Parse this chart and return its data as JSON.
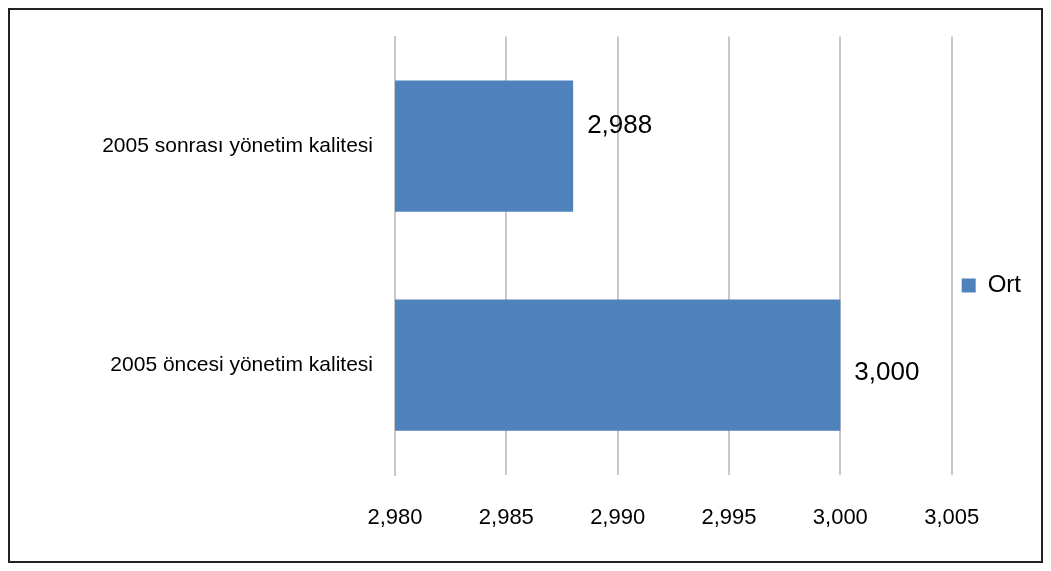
{
  "chart_data": {
    "type": "bar",
    "orientation": "horizontal",
    "categories": [
      "2005 sonrası yönetim kalitesi",
      "2005 öncesi yönetim kalitesi"
    ],
    "series": [
      {
        "name": "Ort",
        "color": "#4f81bd",
        "values": [
          2988,
          3000
        ],
        "value_labels": [
          "2,988",
          "3,000"
        ]
      }
    ],
    "xlim": [
      2980,
      3005
    ],
    "xticks": [
      {
        "value": 2980,
        "label": "2,980"
      },
      {
        "value": 2985,
        "label": "2,985"
      },
      {
        "value": 2990,
        "label": "2,990"
      },
      {
        "value": 2995,
        "label": "2,995"
      },
      {
        "value": 3000,
        "label": "3,000"
      },
      {
        "value": 3005,
        "label": "3,005"
      }
    ],
    "grid": "x",
    "legend": "right"
  }
}
